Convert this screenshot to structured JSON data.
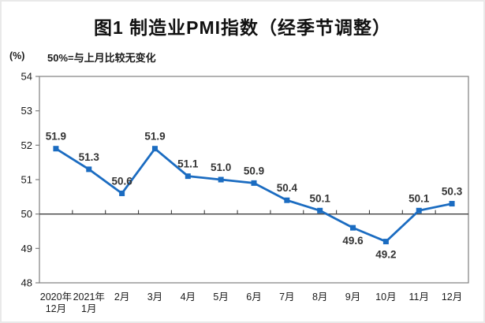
{
  "page": {
    "title": "图1 制造业PMI指数（经季节调整）",
    "y_unit_label": "(%)",
    "subtitle": "50%=与上月比较无变化"
  },
  "chart_data": {
    "type": "line",
    "title": "图1 制造业PMI指数（经季节调整）",
    "subtitle": "50%=与上月比较无变化",
    "ylabel": "(%)",
    "xlabel": "",
    "categories": [
      "2020年12月",
      "2021年1月",
      "2月",
      "3月",
      "4月",
      "5月",
      "6月",
      "7月",
      "8月",
      "9月",
      "10月",
      "11月",
      "12月"
    ],
    "tick_label_lines": [
      [
        "2020年",
        "12月"
      ],
      [
        "2021年",
        "1月"
      ],
      [
        "2月"
      ],
      [
        "3月"
      ],
      [
        "4月"
      ],
      [
        "5月"
      ],
      [
        "6月"
      ],
      [
        "7月"
      ],
      [
        "8月"
      ],
      [
        "9月"
      ],
      [
        "10月"
      ],
      [
        "11月"
      ],
      [
        "12月"
      ]
    ],
    "values": [
      51.9,
      51.3,
      50.6,
      51.9,
      51.1,
      51.0,
      50.9,
      50.4,
      50.1,
      49.6,
      49.2,
      50.1,
      50.3
    ],
    "ylim": [
      48,
      54
    ],
    "y_ticks": [
      48,
      49,
      50,
      51,
      52,
      53,
      54
    ],
    "reference_line": 50,
    "grid": false,
    "legend": false,
    "marker": "square",
    "colors": {
      "line": "#1b6cc1",
      "marker": "#1b6cc1",
      "axis": "#7f7f7f",
      "reference": "#3f3f3f",
      "data_label": "#333333",
      "tick_text": "#1a1a1a"
    }
  }
}
